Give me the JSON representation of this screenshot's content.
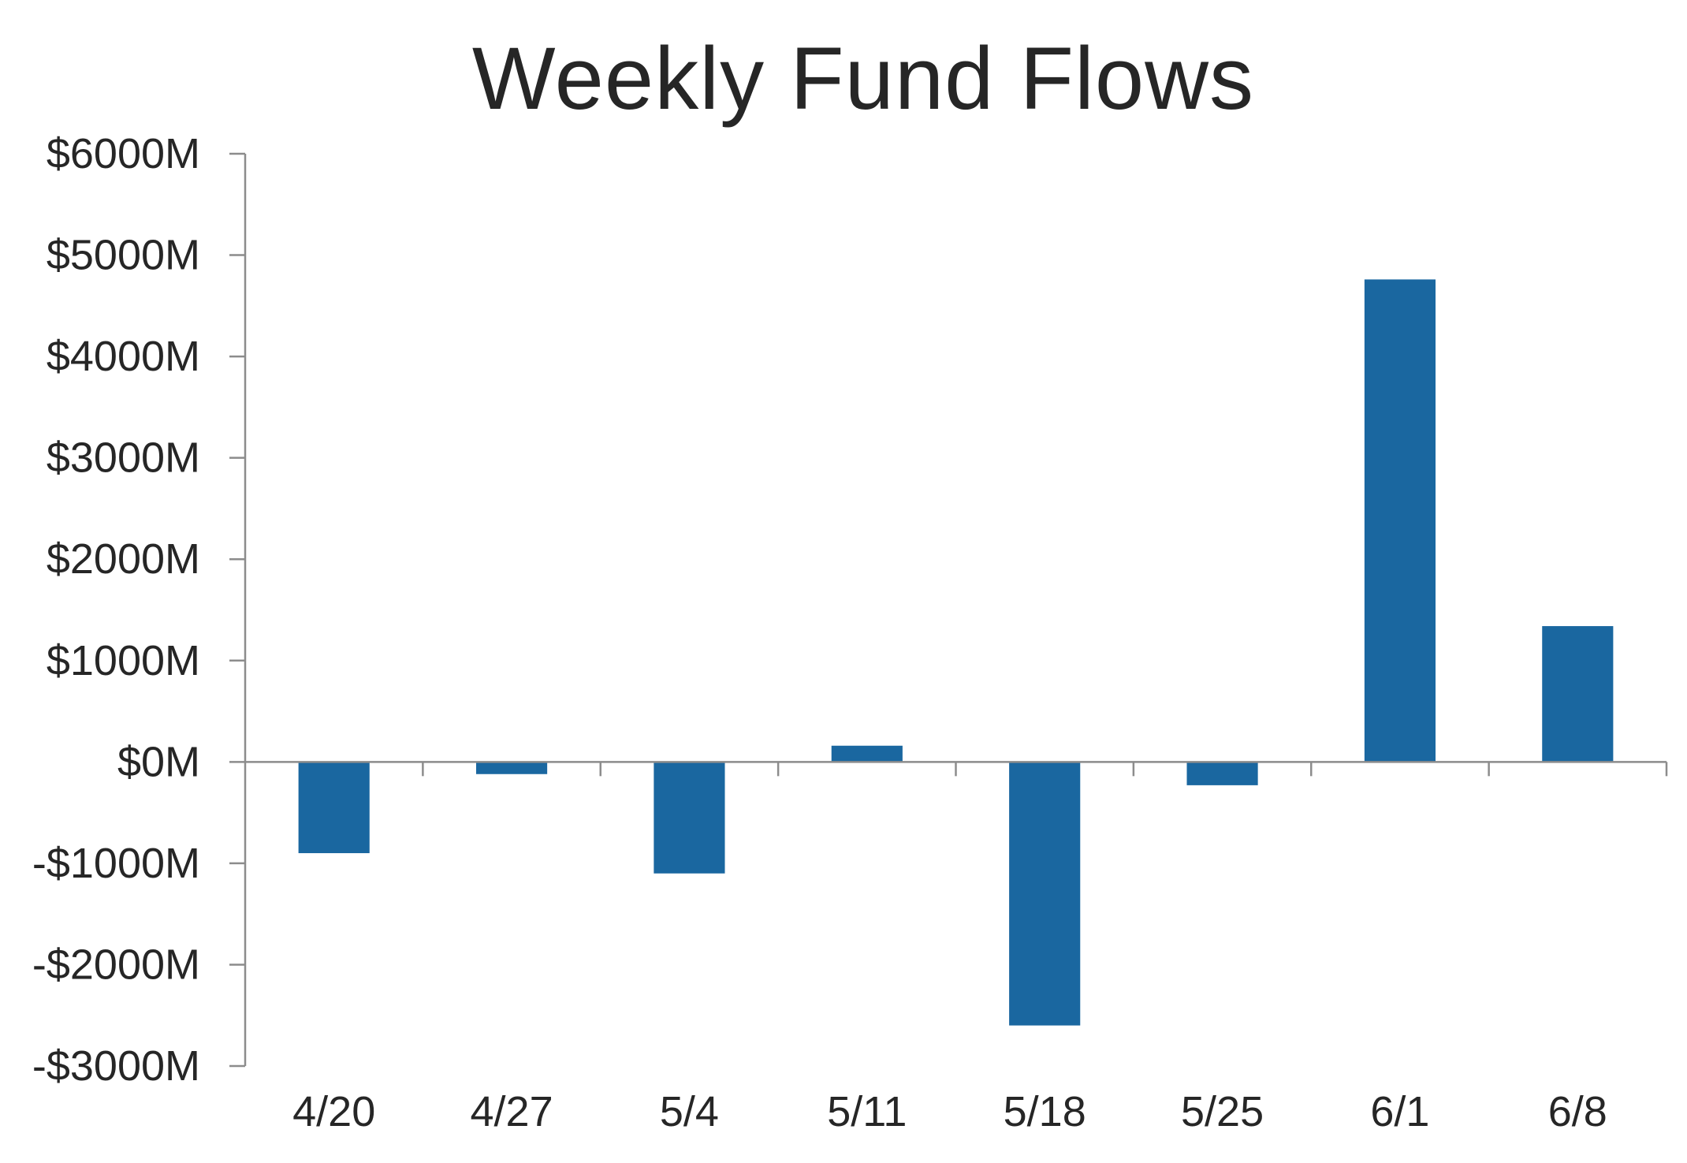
{
  "chart_data": {
    "type": "bar",
    "title": "Weekly Fund Flows",
    "xlabel": "",
    "ylabel": "",
    "categories": [
      "4/20",
      "4/27",
      "5/4",
      "5/11",
      "5/18",
      "5/25",
      "6/1",
      "6/8"
    ],
    "values": [
      -900,
      -120,
      -1100,
      160,
      -2600,
      -230,
      4760,
      1340
    ],
    "ylim": [
      -3000,
      6000
    ],
    "y_ticks": [
      6000,
      5000,
      4000,
      3000,
      2000,
      1000,
      0,
      -1000,
      -2000,
      -3000
    ],
    "y_tick_labels": [
      "$6000M",
      "$5000M",
      "$4000M",
      "$3000M",
      "$2000M",
      "$1000M",
      "$0M",
      "-$1000M",
      "-$2000M",
      "-$3000M"
    ],
    "grid": false,
    "legend": "none",
    "bar_color": "#1a67a0",
    "axis_color": "#8c8c8c",
    "text_color": "#262626"
  }
}
